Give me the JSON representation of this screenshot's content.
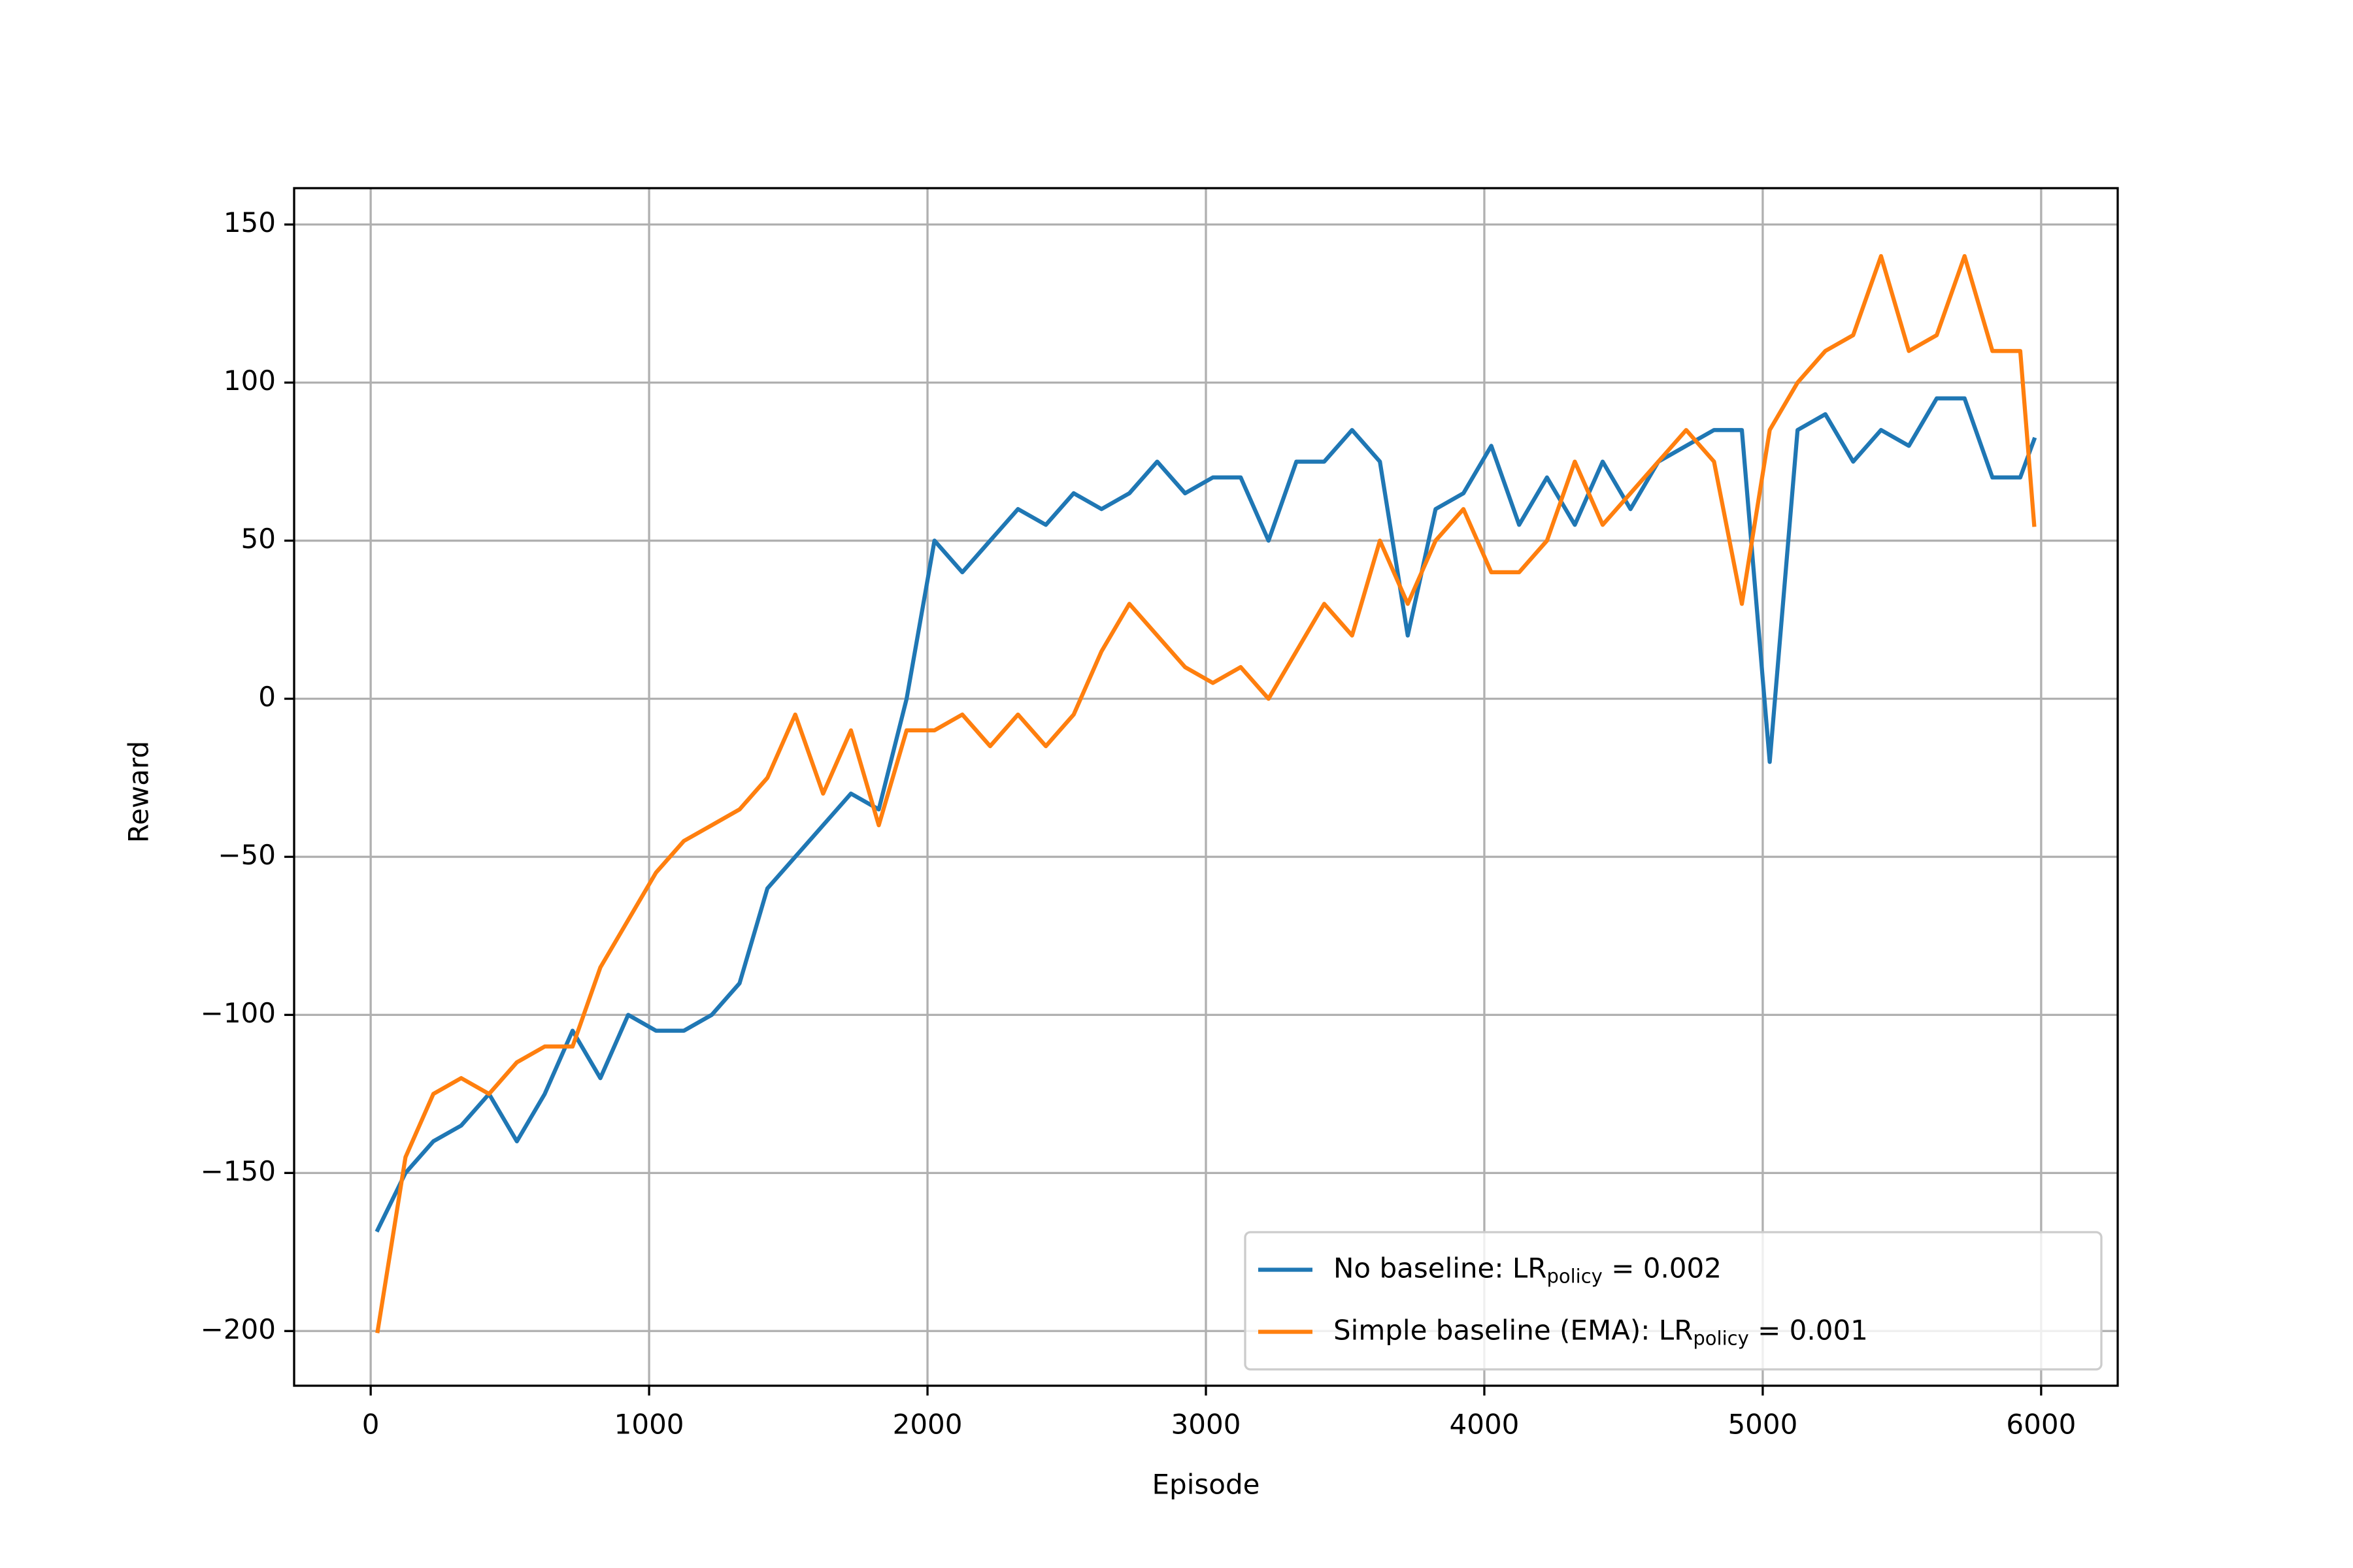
{
  "chart_data": {
    "type": "line",
    "xlabel": "Episode",
    "ylabel": "Reward",
    "x": [
      25,
      125,
      225,
      325,
      425,
      525,
      625,
      725,
      825,
      925,
      1025,
      1125,
      1225,
      1325,
      1425,
      1525,
      1625,
      1725,
      1825,
      1925,
      2025,
      2125,
      2225,
      2325,
      2425,
      2525,
      2625,
      2725,
      2825,
      2925,
      3025,
      3125,
      3225,
      3325,
      3425,
      3525,
      3625,
      3725,
      3825,
      3925,
      4025,
      4125,
      4225,
      4325,
      4425,
      4525,
      4625,
      4725,
      4825,
      4925,
      5025,
      5125,
      5225,
      5325,
      5425,
      5525,
      5625,
      5725,
      5825,
      5925,
      5975
    ],
    "series": [
      {
        "name": [
          "No baseline: LR",
          "policy",
          " =  0.002"
        ],
        "color": "#1f77b4",
        "values": [
          -168,
          -150,
          -140,
          -135,
          -125,
          -140,
          -125,
          -105,
          -120,
          -100,
          -105,
          -105,
          -100,
          -90,
          -60,
          -50,
          -40,
          -30,
          -35,
          0,
          50,
          40,
          50,
          60,
          55,
          65,
          60,
          65,
          75,
          65,
          70,
          70,
          50,
          75,
          75,
          85,
          75,
          20,
          60,
          65,
          80,
          55,
          70,
          55,
          75,
          60,
          75,
          80,
          85,
          85,
          -20,
          85,
          90,
          75,
          85,
          80,
          95,
          95,
          70,
          70,
          82
        ]
      },
      {
        "name": [
          "Simple baseline (EMA): LR",
          "policy",
          " =  0.001"
        ],
        "color": "#ff7f0e",
        "values": [
          -200,
          -145,
          -125,
          -120,
          -125,
          -115,
          -110,
          -110,
          -85,
          -70,
          -55,
          -45,
          -40,
          -35,
          -25,
          -5,
          -30,
          -10,
          -40,
          -10,
          -10,
          -5,
          -15,
          -5,
          -15,
          -5,
          15,
          30,
          20,
          10,
          5,
          10,
          0,
          15,
          30,
          20,
          50,
          30,
          50,
          60,
          40,
          40,
          50,
          75,
          55,
          65,
          75,
          85,
          75,
          30,
          85,
          100,
          110,
          115,
          140,
          110,
          115,
          140,
          110,
          110,
          55
        ]
      }
    ],
    "xlim": [
      -275,
      6275
    ],
    "xticks": [
      0,
      1000,
      2000,
      3000,
      4000,
      5000,
      6000
    ],
    "ylim": [
      -217.3,
      161.5
    ],
    "yticks": [
      {
        "value": -200,
        "label": "−200"
      },
      {
        "value": -150,
        "label": "−150"
      },
      {
        "value": -100,
        "label": "−100"
      },
      {
        "value": -50,
        "label": "−50"
      },
      0,
      50,
      100,
      150
    ],
    "grid": true,
    "legend": "lower right"
  }
}
